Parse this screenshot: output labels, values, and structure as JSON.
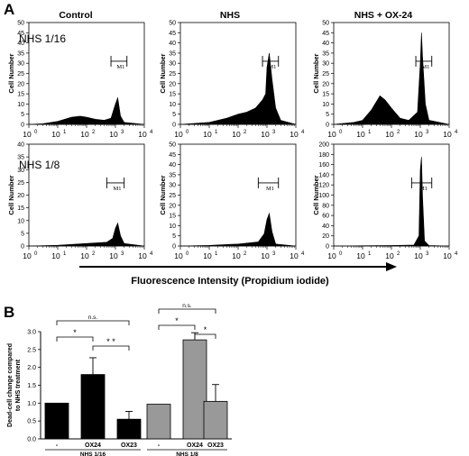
{
  "panels": {
    "a": "A",
    "b": "B"
  },
  "histograms": {
    "column_titles": [
      "Control",
      "NHS",
      "NHS + OX-24"
    ],
    "row_labels": [
      "NHS 1/16",
      "NHS 1/8"
    ],
    "y_axis_label": "Cell Number",
    "x_axis_label": "Fluorescence Intensity (Propidium iodide)",
    "marker_label": "M1",
    "x_tick_labels": [
      "10",
      "10",
      "10",
      "10",
      "10"
    ],
    "x_tick_exponents": [
      "0",
      "1",
      "2",
      "3",
      "4"
    ]
  },
  "bars": {
    "y_label_line1": "Dead-cell change compared",
    "y_label_line2": "to NHS treatment",
    "significance": {
      "ns": "n.s.",
      "star": "*",
      "two_star": "* *"
    }
  },
  "chart_data": [
    {
      "type": "area",
      "panel": "A",
      "row": "NHS 1/16",
      "column": "Control",
      "x_scale": "log",
      "xlim": [
        1,
        10000
      ],
      "ylim": [
        0,
        50
      ],
      "y_ticks": [
        0,
        5,
        10,
        15,
        20,
        25,
        30,
        35,
        40,
        45,
        50
      ],
      "x": [
        1,
        3,
        10,
        30,
        60,
        100,
        200,
        400,
        700,
        1000,
        1200,
        1500,
        2000,
        10000
      ],
      "y": [
        0,
        0.3,
        1.5,
        3.5,
        4,
        3.5,
        2.5,
        2,
        3,
        10,
        13,
        4,
        1,
        0
      ],
      "marker_range": [
        700,
        2500
      ]
    },
    {
      "type": "area",
      "panel": "A",
      "row": "NHS 1/16",
      "column": "NHS",
      "x_scale": "log",
      "xlim": [
        1,
        10000
      ],
      "ylim": [
        0,
        50
      ],
      "y_ticks": [
        0,
        5,
        10,
        15,
        20,
        25,
        30,
        35,
        40,
        45,
        50
      ],
      "x": [
        1,
        10,
        40,
        100,
        200,
        400,
        700,
        900,
        1000,
        1200,
        1500,
        2000,
        3000,
        10000
      ],
      "y": [
        0,
        1,
        3,
        5,
        6,
        8,
        12,
        15,
        28,
        35,
        22,
        8,
        2,
        0
      ],
      "marker_range": [
        700,
        2500
      ]
    },
    {
      "type": "area",
      "panel": "A",
      "row": "NHS 1/16",
      "column": "NHS + OX-24",
      "x_scale": "log",
      "xlim": [
        1,
        10000
      ],
      "ylim": [
        0,
        50
      ],
      "y_ticks": [
        0,
        5,
        10,
        15,
        20,
        25,
        30,
        35,
        40,
        45,
        50
      ],
      "x": [
        1,
        5,
        10,
        20,
        40,
        60,
        100,
        200,
        400,
        800,
        1000,
        1100,
        1200,
        1500,
        2000,
        10000
      ],
      "y": [
        0,
        1,
        2,
        7,
        14,
        12,
        8,
        3,
        2,
        6,
        30,
        45,
        33,
        10,
        2,
        0
      ],
      "marker_range": [
        700,
        2500
      ]
    },
    {
      "type": "area",
      "panel": "A",
      "row": "NHS 1/8",
      "column": "Control",
      "x_scale": "log",
      "xlim": [
        1,
        10000
      ],
      "ylim": [
        0,
        40
      ],
      "y_ticks": [
        0,
        5,
        10,
        15,
        20,
        25,
        30,
        35,
        40
      ],
      "x": [
        1,
        10,
        100,
        500,
        800,
        1000,
        1200,
        1500,
        2000,
        10000
      ],
      "y": [
        0,
        0.3,
        1,
        1.5,
        3,
        7,
        9,
        4,
        1,
        0
      ],
      "marker_range": [
        500,
        2000
      ]
    },
    {
      "type": "area",
      "panel": "A",
      "row": "NHS 1/8",
      "column": "NHS",
      "x_scale": "log",
      "xlim": [
        1,
        10000
      ],
      "ylim": [
        0,
        50
      ],
      "y_ticks": [
        0,
        5,
        10,
        15,
        20,
        25,
        30,
        35,
        40,
        45,
        50
      ],
      "x": [
        1,
        10,
        100,
        500,
        800,
        1000,
        1200,
        1500,
        2000,
        10000
      ],
      "y": [
        0,
        0.3,
        1,
        2,
        6,
        13,
        16,
        7,
        1,
        0
      ],
      "marker_range": [
        500,
        2500
      ]
    },
    {
      "type": "area",
      "panel": "A",
      "row": "NHS 1/8",
      "column": "NHS + OX-24",
      "x_scale": "log",
      "xlim": [
        1,
        10000
      ],
      "ylim": [
        0,
        200
      ],
      "y_ticks": [
        0,
        20,
        40,
        60,
        80,
        100,
        120,
        140,
        160,
        180,
        200
      ],
      "x": [
        1,
        10,
        100,
        600,
        900,
        1000,
        1100,
        1200,
        1400,
        2000,
        10000
      ],
      "y": [
        0,
        0.5,
        1,
        2,
        20,
        150,
        175,
        95,
        10,
        1,
        0
      ],
      "marker_range": [
        500,
        2500
      ]
    },
    {
      "type": "bar",
      "panel": "B",
      "groups": [
        {
          "label": "NHS 1/16",
          "categories": [
            "-",
            "OX24",
            "OX23"
          ],
          "values": [
            1.0,
            1.8,
            0.55
          ],
          "errors": [
            0,
            0.47,
            0.22
          ],
          "color": "#000000"
        },
        {
          "label": "NHS 1/8",
          "categories": [
            "-",
            "OX24",
            "OX23"
          ],
          "values": [
            0.97,
            2.77,
            1.05
          ],
          "errors": [
            0,
            0.2,
            0.47
          ],
          "color": "#999999"
        }
      ],
      "ylabel": "Dead-cell change compared to NHS treatment",
      "ylim": [
        0,
        3.0
      ],
      "y_ticks": [
        0.0,
        0.5,
        1.0,
        1.5,
        2.0,
        2.5,
        3.0
      ],
      "comparisons": [
        {
          "group": "NHS 1/16",
          "between": [
            "-",
            "OX24"
          ],
          "label": "*"
        },
        {
          "group": "NHS 1/16",
          "between": [
            "OX24",
            "OX23"
          ],
          "label": "* *"
        },
        {
          "group": "NHS 1/16",
          "between": [
            "-",
            "OX23"
          ],
          "label": "n.s."
        },
        {
          "group": "NHS 1/8",
          "between": [
            "-",
            "OX24"
          ],
          "label": "*"
        },
        {
          "group": "NHS 1/8",
          "between": [
            "OX24",
            "OX23"
          ],
          "label": "*"
        },
        {
          "group": "NHS 1/8",
          "between": [
            "-",
            "OX23"
          ],
          "label": "n.s."
        }
      ]
    }
  ]
}
